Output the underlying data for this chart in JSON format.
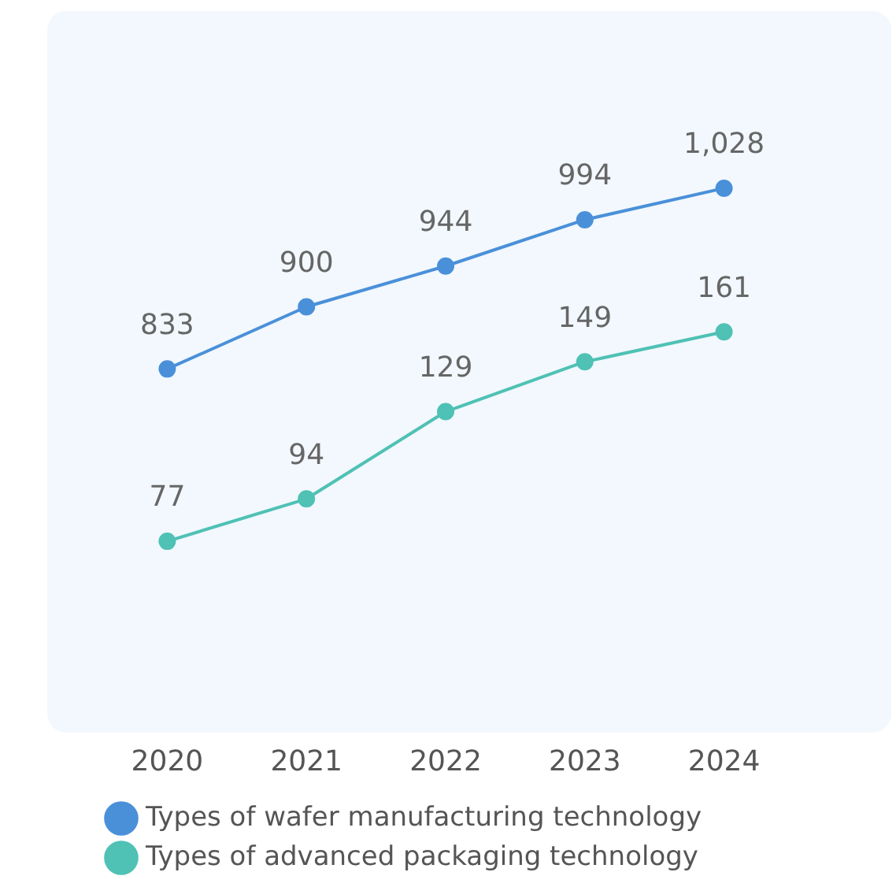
{
  "chart_data": {
    "type": "line",
    "categories": [
      "2020",
      "2021",
      "2022",
      "2023",
      "2024"
    ],
    "series": [
      {
        "name": "Types of wafer manufacturing technology",
        "color": "#4a90d9",
        "values": [
          833,
          900,
          944,
          994,
          1028
        ],
        "value_labels": [
          "833",
          "900",
          "944",
          "994",
          "1,028"
        ]
      },
      {
        "name": "Types of advanced packaging technology",
        "color": "#4fc1b5",
        "values": [
          77,
          94,
          129,
          149,
          161
        ],
        "value_labels": [
          "77",
          "94",
          "129",
          "149",
          "161"
        ],
        "axis": "y2"
      }
    ],
    "ylim": [
      440,
      1220
    ],
    "y2lim": [
      0,
      290
    ],
    "legend": "bottom",
    "marker": "circle",
    "line_style": "solid",
    "grid": false
  }
}
